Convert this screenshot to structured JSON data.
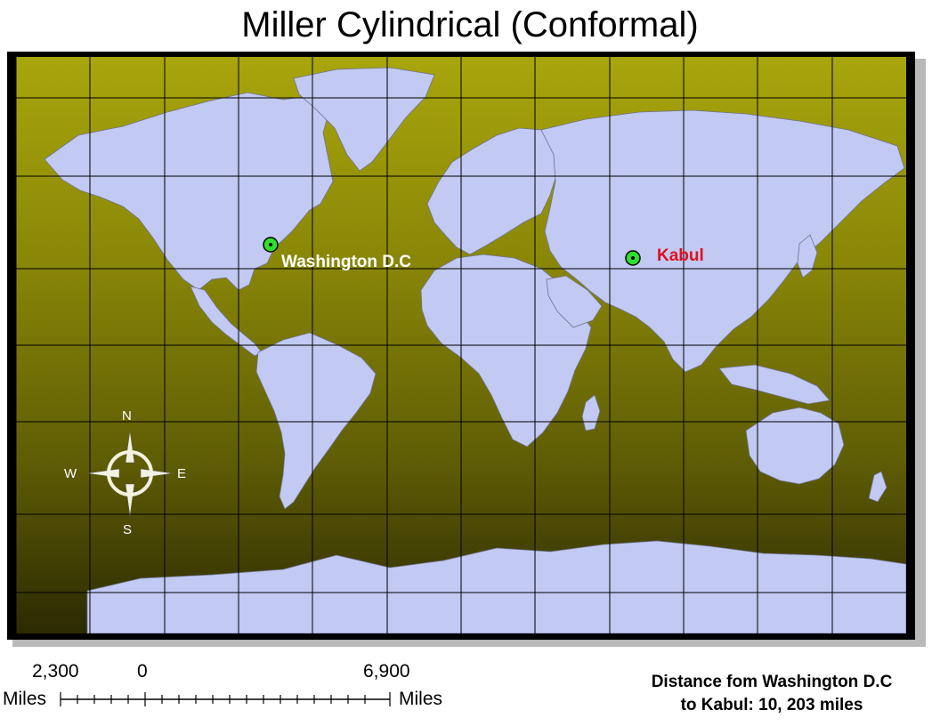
{
  "title": "Miller Cylindrical (Conformal)",
  "map": {
    "ocean_gradient": [
      "#a8a50c",
      "#8a8708",
      "#5f5d05",
      "#2c2a02"
    ],
    "land_color": "#c2c9f2",
    "grid_color": "#000000",
    "markers": [
      {
        "label": "Washington D.C",
        "label_color": "#ffffff",
        "marker_color": "#2de02d"
      },
      {
        "label": "Kabul",
        "label_color": "#e0101e",
        "marker_color": "#2de02d"
      }
    ]
  },
  "compass": {
    "north": "N",
    "south": "S",
    "east": "E",
    "west": "W",
    "icon": "compass-rose-icon"
  },
  "scale_bar": {
    "labels": [
      "2,300",
      "0",
      "6,900"
    ],
    "unit_left": "Miles",
    "unit_right": "Miles"
  },
  "distance_note": {
    "line1": "Distance fom Washington D.C",
    "line2": "to Kabul: 10, 203 miles"
  }
}
